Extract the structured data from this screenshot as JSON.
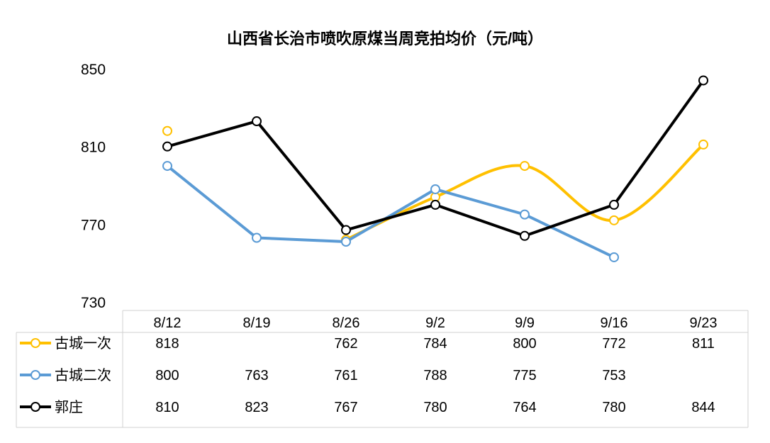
{
  "chart_data": {
    "type": "line",
    "title": "山西省长治市喷吹原煤当周竞拍均价（元/吨）",
    "categories": [
      "8/12",
      "8/19",
      "8/26",
      "9/2",
      "9/9",
      "9/16",
      "9/23"
    ],
    "ylim": [
      730,
      850
    ],
    "yticks": [
      "730",
      "770",
      "810",
      "850"
    ],
    "grid": false,
    "legend": "bottom-table",
    "series": [
      {
        "name": "古城一次",
        "color": "#FFC000",
        "values": [
          818,
          null,
          762,
          784,
          800,
          772,
          811
        ],
        "labels": [
          "818",
          "",
          "762",
          "784",
          "800",
          "772",
          "811"
        ]
      },
      {
        "name": "古城二次",
        "color": "#5B9BD5",
        "values": [
          800,
          763,
          761,
          788,
          775,
          753,
          null
        ],
        "labels": [
          "800",
          "763",
          "761",
          "788",
          "775",
          "753",
          ""
        ]
      },
      {
        "name": "郭庄",
        "color": "#000000",
        "values": [
          810,
          823,
          767,
          780,
          764,
          780,
          844
        ],
        "labels": [
          "810",
          "823",
          "767",
          "780",
          "764",
          "780",
          "844"
        ]
      }
    ]
  }
}
